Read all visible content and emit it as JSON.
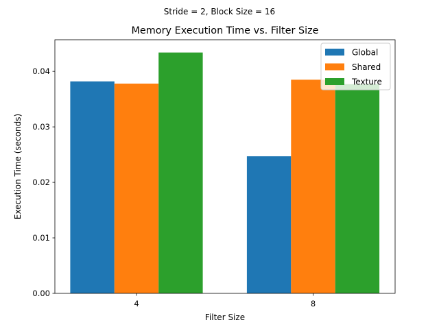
{
  "chart_data": {
    "type": "bar",
    "suptitle": "Stride = 2, Block Size = 16",
    "title": "Memory Execution Time vs. Filter Size",
    "xlabel": "Filter Size",
    "ylabel": "Execution Time (seconds)",
    "categories": [
      "4",
      "8"
    ],
    "series": [
      {
        "name": "Global",
        "color": "#1f77b4",
        "values": [
          0.0382,
          0.0247
        ]
      },
      {
        "name": "Shared",
        "color": "#ff7f0e",
        "values": [
          0.0378,
          0.0385
        ]
      },
      {
        "name": "Texture",
        "color": "#2ca02c",
        "values": [
          0.0434,
          0.0377
        ]
      }
    ],
    "ylim": [
      0,
      0.0457
    ],
    "yticks": [
      "0.00",
      "0.01",
      "0.02",
      "0.03",
      "0.04"
    ],
    "ytick_values": [
      0,
      0.01,
      0.02,
      0.03,
      0.04
    ],
    "grid": false,
    "legend": "top-right"
  }
}
